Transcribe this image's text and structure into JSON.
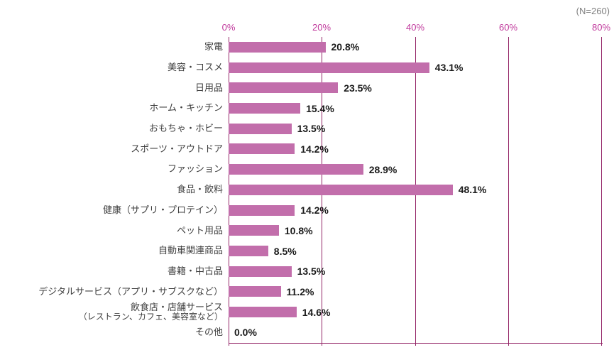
{
  "meta": {
    "n_label": "(N=260)"
  },
  "chart_data": {
    "type": "bar",
    "orientation": "horizontal",
    "title": "",
    "xlabel": "",
    "ylabel": "",
    "grid": "vertical",
    "legend": "none",
    "xlim": [
      0,
      80
    ],
    "x_ticks": [
      "0%",
      "20%",
      "40%",
      "60%",
      "80%"
    ],
    "categories": [
      "家電",
      "美容・コスメ",
      "日用品",
      "ホーム・キッチン",
      "おもちゃ・ホビー",
      "スポーツ・アウトドア",
      "ファッション",
      "食品・飲料",
      "健康（サプリ・プロテイン）",
      "ペット用品",
      "自動車関連商品",
      "書籍・中古品",
      "デジタルサービス（アプリ・サブスクなど）",
      "飲食店・店舗サービス",
      "その他"
    ],
    "sublabels": {
      "13": "（レストラン、カフェ、美容室など）"
    },
    "values": [
      20.8,
      43.1,
      23.5,
      15.4,
      13.5,
      14.2,
      28.9,
      48.1,
      14.2,
      10.8,
      8.5,
      13.5,
      11.2,
      14.6,
      0.0
    ],
    "display_values": [
      "20.8%",
      "43.1%",
      "23.5%",
      "15.4%",
      "13.5%",
      "14.2%",
      "28.9%",
      "48.1%",
      "14.2%",
      "10.8%",
      "8.5%",
      "13.5%",
      "11.2%",
      "14.6%",
      "0.0%"
    ],
    "colors": {
      "bar": "#c26eab",
      "gridline": "#942668",
      "tick_label": "#c0399c",
      "value_label": "#1a1a1a",
      "n_label": "#7f7f7f"
    }
  }
}
